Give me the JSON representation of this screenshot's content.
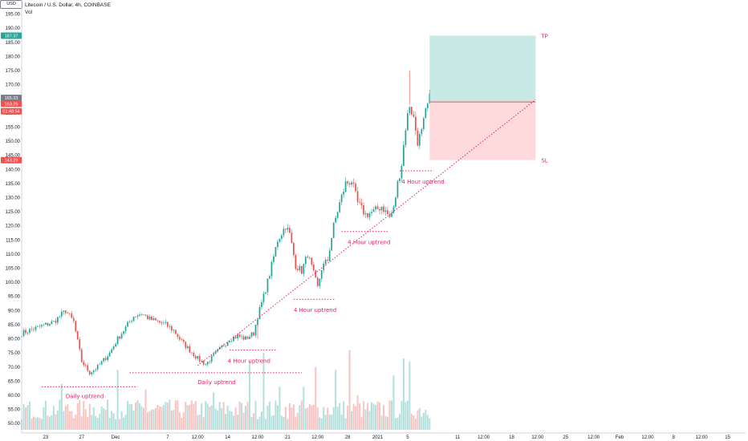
{
  "header": {
    "title": "Litecoin / U.S. Dollar, 4h, COINBASE",
    "volume_label": "Vol",
    "currency": "USD"
  },
  "colors": {
    "up": "#26a69a",
    "down": "#ef5350",
    "annotation": "#e91e63",
    "tp_zone": "#b2dfdb",
    "sl_zone": "#ffcdd2"
  },
  "chart_data": {
    "type": "candlestick",
    "title": "Litecoin / U.S. Dollar, 4h, COINBASE",
    "y_ticks": [
      50,
      55,
      60,
      65,
      70,
      75,
      80,
      85,
      90,
      95,
      100,
      105,
      110,
      115,
      120,
      125,
      130,
      135,
      140,
      145,
      150,
      155,
      160,
      165,
      170,
      175,
      180,
      185,
      190,
      195
    ],
    "y_tick_labels": [
      "50.00",
      "55.00",
      "60.00",
      "65.00",
      "70.00",
      "75.00",
      "80.00",
      "85.00",
      "90.00",
      "95.00",
      "100.00",
      "105.00",
      "110.00",
      "115.00",
      "120.00",
      "125.00",
      "130.00",
      "135.00",
      "140.00",
      "145.00",
      "150.00",
      "155.00",
      "160.00",
      "165.00",
      "170.00",
      "175.00",
      "180.00",
      "185.00",
      "190.00",
      "195.00"
    ],
    "ylim": [
      47.5,
      200
    ],
    "x_ticks": [
      "23",
      "27",
      "Dec",
      "7",
      "12:00",
      "14",
      "12:00",
      "21",
      "12:00",
      "28",
      "2021",
      "5",
      "11",
      "12:00",
      "18",
      "12:00",
      "25",
      "12:00",
      "Feb",
      "12:00",
      "8",
      "12:00",
      "15"
    ],
    "x_tick_index": [
      12,
      30,
      47,
      73,
      88,
      103,
      118,
      133,
      148,
      163,
      178,
      193,
      218,
      231,
      245,
      258,
      272,
      286,
      299,
      313,
      326,
      340,
      353
    ],
    "x_range": [
      0,
      362
    ],
    "price_keypoints": [
      [
        0,
        82
      ],
      [
        8,
        84
      ],
      [
        16,
        86
      ],
      [
        22,
        90
      ],
      [
        26,
        86
      ],
      [
        30,
        72
      ],
      [
        34,
        68
      ],
      [
        38,
        70
      ],
      [
        44,
        75
      ],
      [
        48,
        80
      ],
      [
        52,
        84
      ],
      [
        56,
        88
      ],
      [
        60,
        89
      ],
      [
        64,
        87
      ],
      [
        68,
        86
      ],
      [
        72,
        85
      ],
      [
        76,
        83
      ],
      [
        80,
        79
      ],
      [
        84,
        76
      ],
      [
        88,
        73
      ],
      [
        92,
        71
      ],
      [
        96,
        74
      ],
      [
        100,
        77
      ],
      [
        104,
        80
      ],
      [
        108,
        81
      ],
      [
        112,
        80
      ],
      [
        116,
        82
      ],
      [
        118,
        88
      ],
      [
        121,
        95
      ],
      [
        124,
        103
      ],
      [
        128,
        115
      ],
      [
        132,
        120
      ],
      [
        134,
        117
      ],
      [
        137,
        106
      ],
      [
        140,
        104
      ],
      [
        143,
        110
      ],
      [
        146,
        103
      ],
      [
        148,
        98
      ],
      [
        150,
        105
      ],
      [
        153,
        108
      ],
      [
        156,
        120
      ],
      [
        159,
        128
      ],
      [
        162,
        135
      ],
      [
        165,
        136
      ],
      [
        168,
        128
      ],
      [
        172,
        124
      ],
      [
        176,
        125
      ],
      [
        180,
        127
      ],
      [
        184,
        123
      ],
      [
        186,
        126
      ],
      [
        188,
        135
      ],
      [
        190,
        142
      ],
      [
        192,
        155
      ],
      [
        194,
        163
      ],
      [
        196,
        158
      ],
      [
        198,
        150
      ],
      [
        200,
        153
      ],
      [
        202,
        160
      ],
      [
        204,
        165
      ]
    ],
    "volumes": {
      "base": 50,
      "spikes": [
        [
          20,
          64
        ],
        [
          34,
          57
        ],
        [
          48,
          69
        ],
        [
          62,
          62
        ],
        [
          87,
          58
        ],
        [
          96,
          61
        ],
        [
          114,
          72
        ],
        [
          121,
          75
        ],
        [
          129,
          63
        ],
        [
          141,
          63
        ],
        [
          147,
          70
        ],
        [
          157,
          69
        ],
        [
          164,
          76
        ],
        [
          168,
          60
        ],
        [
          186,
          67
        ],
        [
          191,
          73
        ],
        [
          194,
          72
        ]
      ]
    },
    "tags": [
      {
        "label": "187.37",
        "value": 187.37,
        "color": "#26a69a"
      },
      {
        "label": "165.33",
        "value": 165.33,
        "color": "#787b86"
      },
      {
        "label": "163.25",
        "value": 163.25,
        "color": "#ef5350"
      },
      {
        "label": "01:48:54",
        "value": 160.6,
        "color": "#ef5350"
      },
      {
        "label": "143.29",
        "value": 143.29,
        "color": "#ef5350"
      }
    ],
    "position": {
      "x_start": 204,
      "x_end": 257,
      "entry": 163.9,
      "target": 187.37,
      "stop": 143.29,
      "tp_label": "TP",
      "sl_label": "SL"
    },
    "trendline": {
      "from": [
        88,
        70.5
      ],
      "to": [
        257,
        164.7
      ]
    },
    "levels": [
      {
        "x0": 10,
        "x1": 58,
        "y": 63,
        "label": "Daily uptrend",
        "label_x": 22,
        "label_y": 59
      },
      {
        "x0": 54,
        "x1": 140,
        "y": 68,
        "label": "Daily uptrend",
        "label_x": 88,
        "label_y": 64
      },
      {
        "x0": 104,
        "x1": 127,
        "y": 76,
        "label": "4 Hour uptrend",
        "label_x": 103,
        "label_y": 71.5
      },
      {
        "x0": 136,
        "x1": 157,
        "y": 94,
        "label": "4 Hour uptrend",
        "label_x": 136,
        "label_y": 89.5
      },
      {
        "x0": 160,
        "x1": 183,
        "y": 118,
        "label": "4 Hour uptrend",
        "label_x": 163,
        "label_y": 113.5
      },
      {
        "x0": 189,
        "x1": 206,
        "y": 139.5,
        "label": "4 Hour uptrend",
        "label_x": 190,
        "label_y": 135
      }
    ]
  }
}
